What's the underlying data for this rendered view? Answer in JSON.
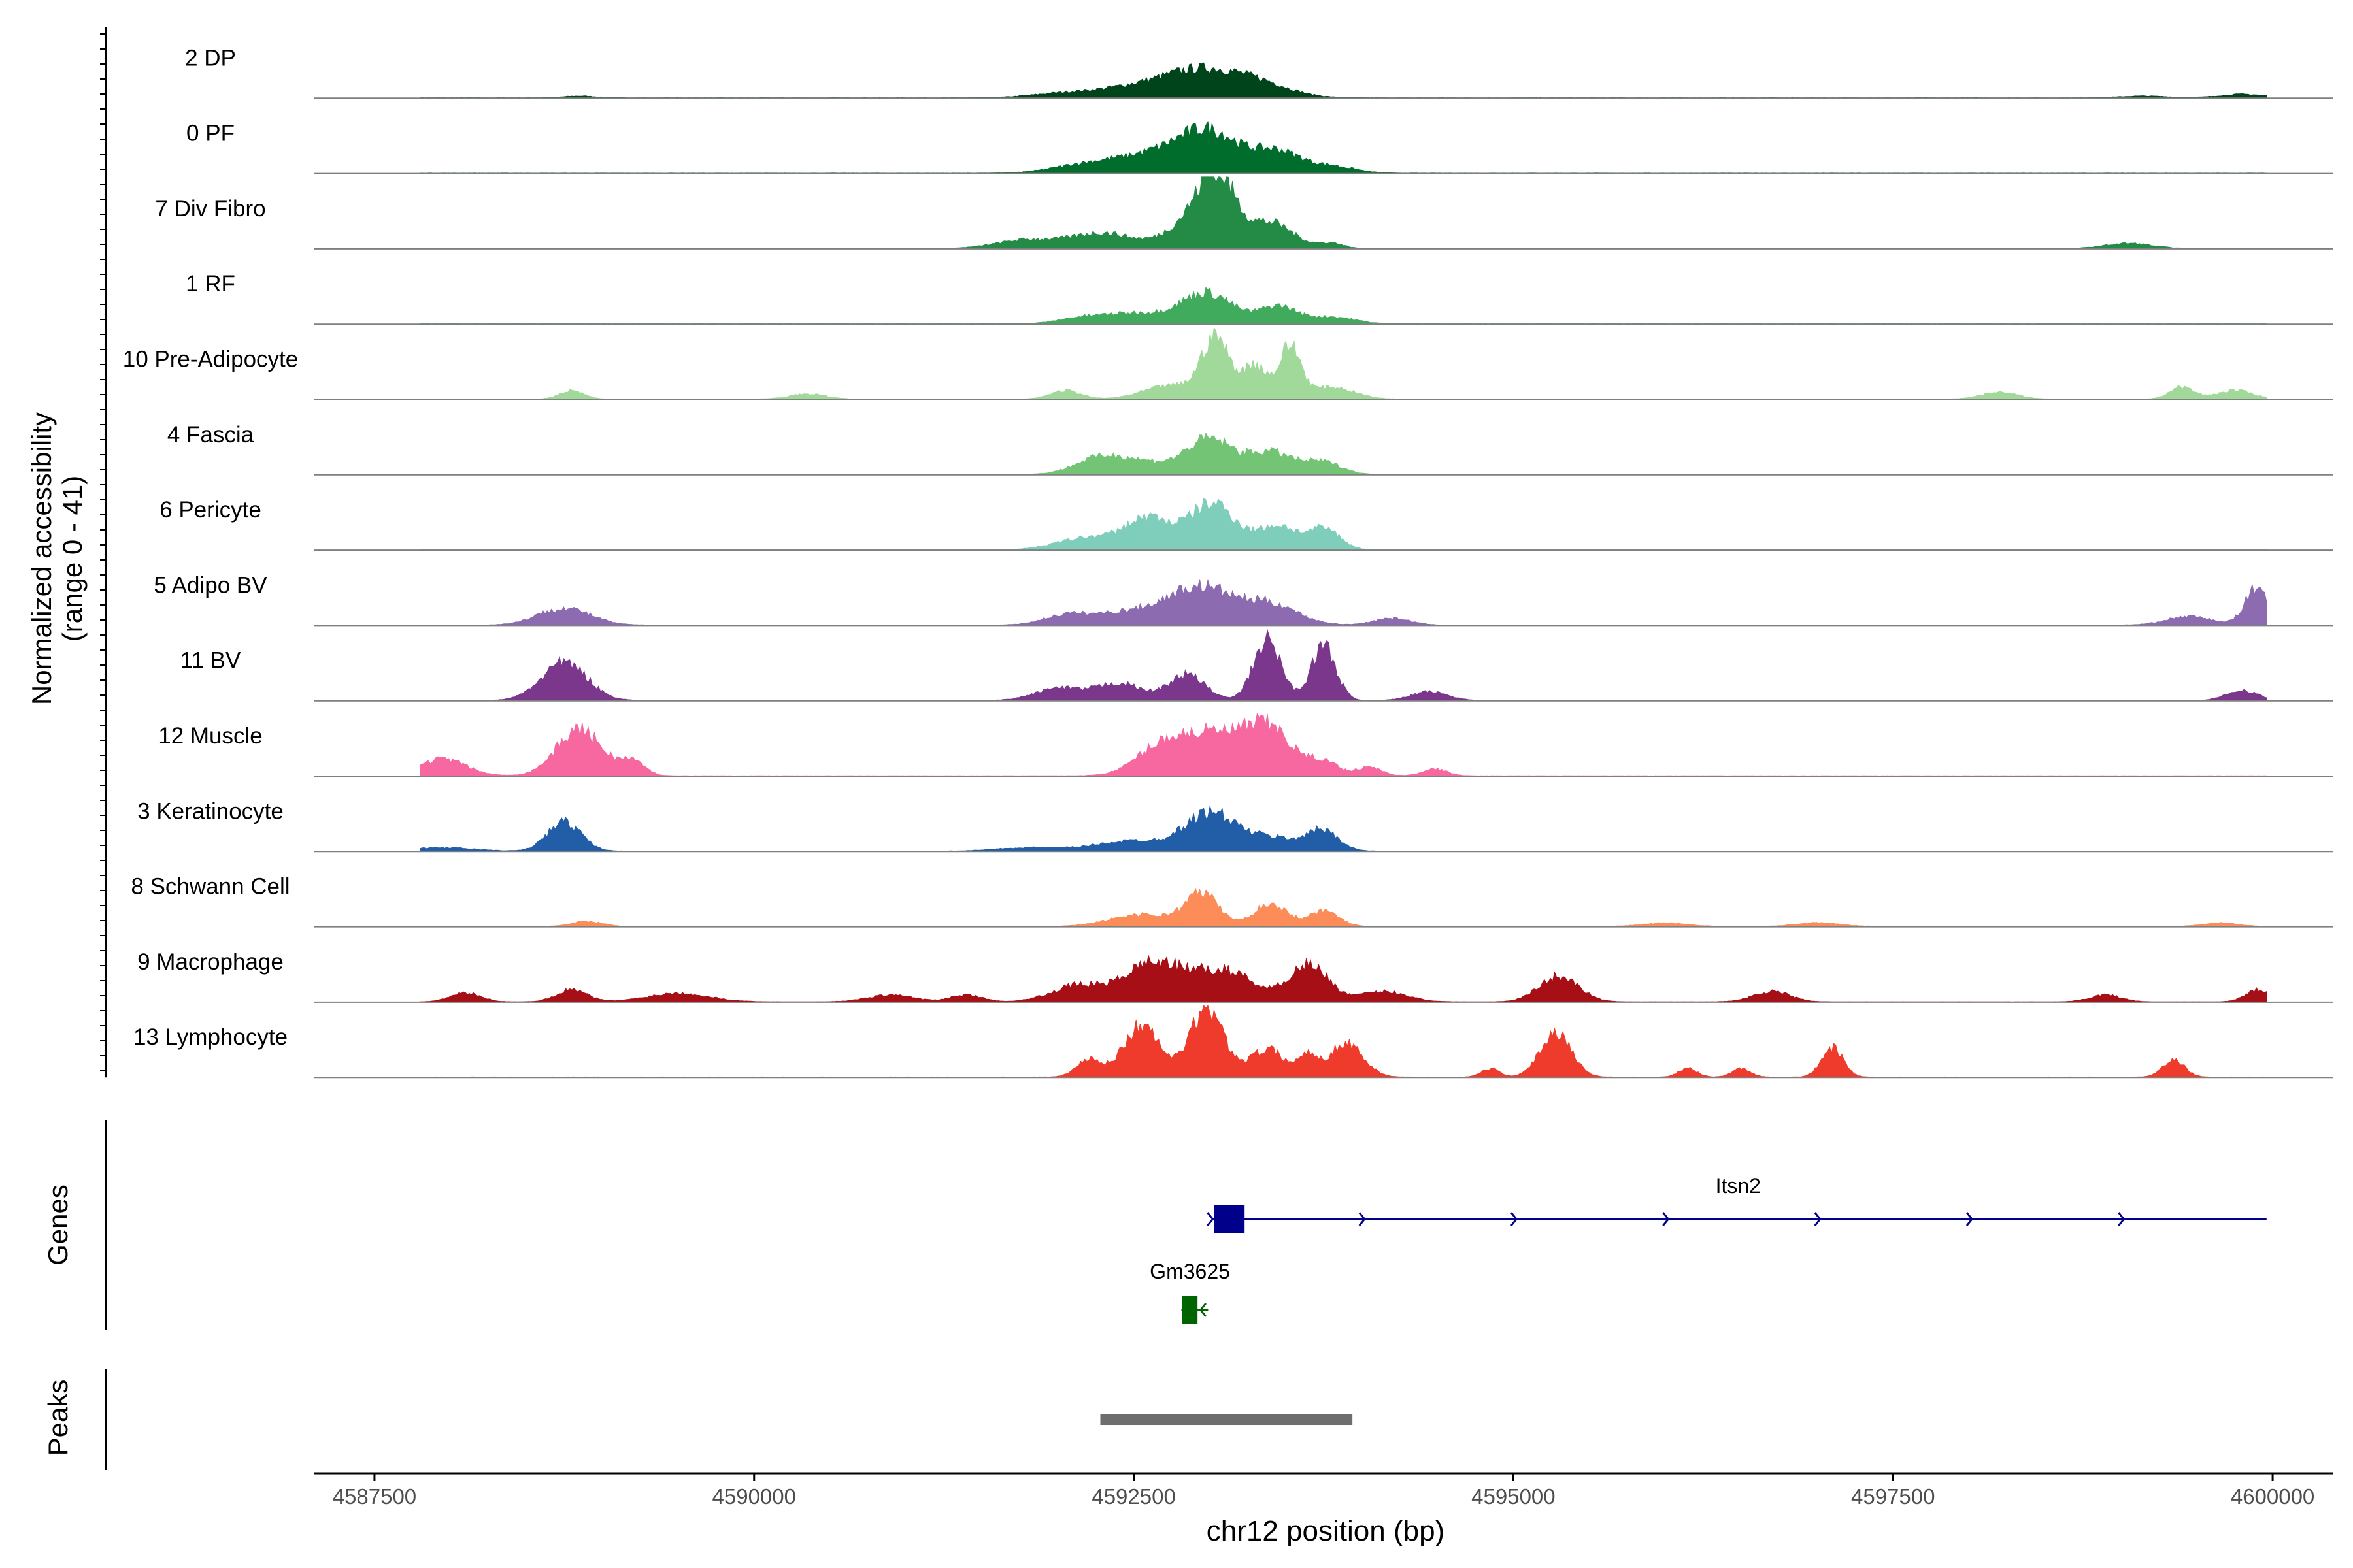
{
  "chart_data": {
    "type": "area",
    "title": "",
    "y_axis_label_line1": "Normalized accessibility",
    "y_axis_label_line2": "(range 0 - 41)",
    "ylim": [
      0,
      41
    ],
    "x_axis_label": "chr12 position (bp)",
    "xlim": [
      4587100,
      4600400
    ],
    "x_ticks": [
      4587500,
      4590000,
      4592500,
      4595000,
      4597500,
      4600000
    ],
    "x_tick_labels": [
      "4587500",
      "4590000",
      "4592500",
      "4595000",
      "4597500",
      "4600000"
    ],
    "grid": false,
    "tracks": [
      {
        "name": "2 DP",
        "color": "#00441b",
        "peaks": [
          [
            4592950,
            16,
            260
          ],
          [
            4593350,
            6,
            200
          ],
          [
            4592450,
            5,
            250
          ],
          [
            4592000,
            2,
            200
          ],
          [
            4588850,
            1,
            100
          ],
          [
            4599150,
            1,
            150
          ],
          [
            4599800,
            2,
            150
          ]
        ]
      },
      {
        "name": "0 PF",
        "color": "#006d2c",
        "peaks": [
          [
            4593000,
            23,
            200
          ],
          [
            4593450,
            12,
            150
          ],
          [
            4592600,
            10,
            250
          ],
          [
            4592150,
            4,
            200
          ],
          [
            4593800,
            4,
            150
          ]
        ]
      },
      {
        "name": "7 Div Fibro",
        "color": "#238b45",
        "peaks": [
          [
            4593050,
            40,
            120
          ],
          [
            4593400,
            15,
            150
          ],
          [
            4592850,
            13,
            150
          ],
          [
            4592300,
            9,
            200
          ],
          [
            4591800,
            5,
            200
          ],
          [
            4593800,
            3,
            80
          ],
          [
            4599050,
            3,
            150
          ]
        ]
      },
      {
        "name": "1 RF",
        "color": "#41ab5d",
        "peaks": [
          [
            4592980,
            18,
            170
          ],
          [
            4593450,
            10,
            120
          ],
          [
            4592500,
            6,
            200
          ],
          [
            4593800,
            4,
            150
          ],
          [
            4592150,
            3,
            150
          ]
        ]
      },
      {
        "name": "10 Pre-Adipocyte",
        "color": "#a1d99b",
        "peaks": [
          [
            4593040,
            35,
            90
          ],
          [
            4593530,
            30,
            70
          ],
          [
            4593300,
            20,
            80
          ],
          [
            4592750,
            8,
            180
          ],
          [
            4593800,
            7,
            150
          ],
          [
            4588800,
            5,
            80
          ],
          [
            4590350,
            3,
            120
          ],
          [
            4592050,
            5,
            100
          ],
          [
            4599400,
            7,
            80
          ],
          [
            4599750,
            5,
            120
          ],
          [
            4598200,
            4,
            120
          ]
        ]
      },
      {
        "name": "4 Fascia",
        "color": "#74c476",
        "peaks": [
          [
            4593000,
            20,
            150
          ],
          [
            4593400,
            13,
            150
          ],
          [
            4592500,
            8,
            230
          ],
          [
            4592250,
            6,
            150
          ],
          [
            4593750,
            7,
            120
          ]
        ]
      },
      {
        "name": "6 Pericyte",
        "color": "#7fcdbb",
        "peaks": [
          [
            4593020,
            27,
            150
          ],
          [
            4592600,
            18,
            150
          ],
          [
            4593450,
            14,
            130
          ],
          [
            4593760,
            12,
            100
          ],
          [
            4592200,
            7,
            200
          ]
        ]
      },
      {
        "name": "5 Adipo BV",
        "color": "#8c6bb1",
        "peaks": [
          [
            4592950,
            21,
            200
          ],
          [
            4593400,
            12,
            180
          ],
          [
            4592500,
            8,
            250
          ],
          [
            4588750,
            10,
            170
          ],
          [
            4599900,
            22,
            80
          ],
          [
            4599450,
            5,
            150
          ],
          [
            4592050,
            5,
            150
          ],
          [
            4594200,
            4,
            120
          ]
        ]
      },
      {
        "name": "11 BV",
        "color": "#7a378b",
        "peaks": [
          [
            4588750,
            22,
            150
          ],
          [
            4593380,
            35,
            90
          ],
          [
            4593750,
            32,
            80
          ],
          [
            4592850,
            15,
            120
          ],
          [
            4592400,
            10,
            150
          ],
          [
            4592000,
            7,
            150
          ],
          [
            4594450,
            5,
            120
          ],
          [
            4599800,
            6,
            100
          ]
        ]
      },
      {
        "name": "12 Muscle",
        "color": "#f768a1",
        "peaks": [
          [
            4588850,
            27,
            150
          ],
          [
            4587950,
            10,
            150
          ],
          [
            4589200,
            8,
            80
          ],
          [
            4593000,
            25,
            250
          ],
          [
            4593400,
            23,
            150
          ],
          [
            4592650,
            10,
            150
          ],
          [
            4593750,
            8,
            100
          ],
          [
            4594050,
            5,
            80
          ],
          [
            4594480,
            4,
            80
          ]
        ]
      },
      {
        "name": "3 Keratinocyte",
        "color": "#225ea8",
        "peaks": [
          [
            4588750,
            17,
            110
          ],
          [
            4593000,
            21,
            160
          ],
          [
            4593750,
            11,
            100
          ],
          [
            4592500,
            6,
            250
          ],
          [
            4593400,
            8,
            200
          ],
          [
            4591800,
            2,
            200
          ],
          [
            4587950,
            2,
            200
          ]
        ]
      },
      {
        "name": "8 Schwann Cell",
        "color": "#fc8d59",
        "peaks": [
          [
            4592950,
            19,
            110
          ],
          [
            4593400,
            13,
            110
          ],
          [
            4593750,
            9,
            100
          ],
          [
            4592550,
            7,
            200
          ],
          [
            4588900,
            3,
            100
          ],
          [
            4596000,
            2,
            150
          ],
          [
            4597000,
            2,
            150
          ],
          [
            4599650,
            2,
            120
          ]
        ]
      },
      {
        "name": "9 Macrophage",
        "color": "#a50f15",
        "peaks": [
          [
            4592600,
            20,
            160
          ],
          [
            4592950,
            15,
            200
          ],
          [
            4593650,
            22,
            130
          ],
          [
            4593200,
            9,
            150
          ],
          [
            4592150,
            10,
            180
          ],
          [
            4594150,
            6,
            150
          ],
          [
            4595300,
            15,
            130
          ],
          [
            4588800,
            7,
            100
          ],
          [
            4589500,
            5,
            200
          ],
          [
            4598900,
            4,
            100
          ],
          [
            4599900,
            7,
            80
          ],
          [
            4596700,
            6,
            120
          ],
          [
            4588100,
            5,
            100
          ],
          [
            4590900,
            4,
            150
          ],
          [
            4591400,
            4,
            100
          ]
        ]
      },
      {
        "name": "13 Lymphocyte",
        "color": "#ef3b2c",
        "peaks": [
          [
            4592550,
            30,
            120
          ],
          [
            4592980,
            40,
            110
          ],
          [
            4593380,
            16,
            120
          ],
          [
            4593900,
            20,
            110
          ],
          [
            4592200,
            10,
            80
          ],
          [
            4595280,
            27,
            100
          ],
          [
            4597100,
            17,
            70
          ],
          [
            4594850,
            5,
            60
          ],
          [
            4596150,
            5,
            60
          ],
          [
            4596500,
            5,
            60
          ],
          [
            4599350,
            10,
            70
          ],
          [
            4593650,
            12,
            60
          ]
        ]
      }
    ],
    "genes_label": "Genes",
    "genes": [
      {
        "name": "Itsn2",
        "color": "#00008b",
        "start": 4593020,
        "end": 4599960,
        "strand": "+",
        "exon_start": 4593030,
        "exon_end": 4593230
      },
      {
        "name": "Gm3625",
        "color": "#006400",
        "start": 4592820,
        "end": 4592990,
        "strand": "-",
        "exon_start": 4592820,
        "exon_end": 4592920
      }
    ],
    "peaks_label": "Peaks",
    "called_peaks": [
      {
        "start": 4592280,
        "end": 4593940,
        "color": "#6e6e6e"
      }
    ]
  }
}
